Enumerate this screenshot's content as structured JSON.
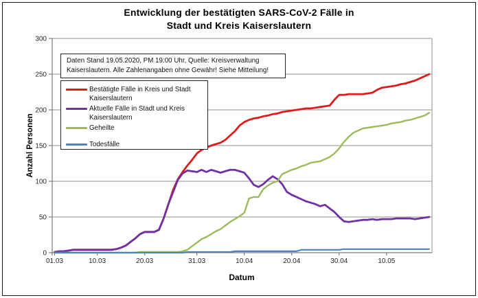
{
  "figure": {
    "title_lines": [
      "Entwicklung der bestätigten SARS-CoV-2 Fälle in",
      "Stadt und Kreis Kaiserslautern"
    ],
    "annotation_lines": [
      "Daten Stand 19.05.2020, PM 19:00 Uhr, Quelle: Kreisverwaltung",
      "Kaiserslautern. Alle Zahlenangaben ohne Gewähr! Siehe Mitteilung!"
    ]
  },
  "chart_data": {
    "type": "line",
    "title": "Entwicklung der bestätigten SARS-CoV-2 Fälle in Stadt und Kreis Kaiserslautern",
    "annotation": "Daten Stand 19.05.2020, PM 19:00 Uhr, Quelle: Kreisverwaltung Kaiserslautern. Alle Zahlenangaben ohne Gewähr! Siehe Mitteilung!",
    "xlabel": "Datum",
    "ylabel": "Anzahl Personen",
    "ylim": [
      0,
      300
    ],
    "yticks": [
      0,
      50,
      100,
      150,
      200,
      250,
      300
    ],
    "grid": "horizontal",
    "legend_position": "upper-left",
    "x_start": "01.03",
    "x_end": "19.05",
    "n_points": 80,
    "x_tick_labels": [
      "01.03",
      "10.03",
      "20.03",
      "31.03",
      "10.04",
      "20.04",
      "30.04",
      "10.05"
    ],
    "x_tick_day_index": [
      0,
      9,
      19,
      30,
      40,
      50,
      60,
      70
    ],
    "axis_color": "#7a7a7a",
    "gridline_color": "#8f8f8f",
    "tick_label_color": "#262626",
    "series": [
      {
        "key": "bestaetigte-faelle",
        "name": "Bestätigte Fälle in Kreis und Stadt Kaiserslautern",
        "color": "#e01a1a",
        "values": [
          1,
          2,
          2,
          3,
          4,
          4,
          4,
          4,
          4,
          4,
          4,
          4,
          4,
          5,
          7,
          10,
          15,
          20,
          26,
          29,
          29,
          29,
          32,
          48,
          68,
          88,
          103,
          113,
          122,
          130,
          139,
          144,
          147,
          150,
          152,
          154,
          158,
          164,
          170,
          178,
          183,
          186,
          188,
          189,
          191,
          192,
          194,
          195,
          197,
          198,
          199,
          200,
          201,
          202,
          202,
          203,
          204,
          205,
          206,
          214,
          221,
          221,
          222,
          222,
          222,
          222,
          223,
          224,
          228,
          231,
          232,
          233,
          234,
          236,
          237,
          239,
          241,
          244,
          247,
          250
        ]
      },
      {
        "key": "aktuelle-faelle",
        "name": "Aktuelle Fälle in Stadt und Kreis Kaiserslautern",
        "color": "#7030a0",
        "values": [
          1,
          2,
          2,
          3,
          4,
          4,
          4,
          4,
          4,
          4,
          4,
          4,
          4,
          5,
          7,
          10,
          15,
          20,
          26,
          29,
          29,
          29,
          32,
          48,
          68,
          85,
          102,
          111,
          115,
          114,
          113,
          116,
          113,
          116,
          114,
          112,
          114,
          116,
          116,
          114,
          112,
          104,
          95,
          92,
          96,
          102,
          107,
          103,
          96,
          85,
          81,
          78,
          75,
          72,
          70,
          68,
          65,
          67,
          62,
          57,
          50,
          44,
          43,
          44,
          45,
          46,
          46,
          47,
          46,
          47,
          47,
          47,
          48,
          48,
          48,
          48,
          47,
          48,
          49,
          50
        ]
      },
      {
        "key": "geheilte",
        "name": "Geheilte",
        "color": "#9bbb59",
        "values": [
          0,
          0,
          0,
          0,
          0,
          0,
          0,
          0,
          0,
          0,
          0,
          0,
          0,
          0,
          0,
          0,
          0,
          0,
          1,
          1,
          1,
          1,
          1,
          1,
          1,
          1,
          1,
          2,
          4,
          9,
          14,
          19,
          22,
          26,
          30,
          33,
          38,
          43,
          47,
          51,
          56,
          76,
          78,
          78,
          89,
          94,
          98,
          100,
          110,
          113,
          116,
          118,
          121,
          123,
          126,
          127,
          128,
          131,
          134,
          139,
          146,
          155,
          162,
          168,
          171,
          174,
          175,
          176,
          177,
          178,
          179,
          181,
          182,
          183,
          185,
          186,
          188,
          190,
          192,
          196
        ]
      },
      {
        "key": "todesfaelle",
        "name": "Todesfälle",
        "color": "#4f81bd",
        "values": [
          0,
          0,
          0,
          0,
          0,
          0,
          0,
          0,
          0,
          0,
          0,
          0,
          0,
          0,
          0,
          0,
          0,
          0,
          0,
          0,
          0,
          0,
          0,
          0,
          0,
          0,
          0,
          0,
          1,
          1,
          1,
          1,
          1,
          1,
          1,
          1,
          1,
          1,
          2,
          2,
          2,
          2,
          2,
          2,
          2,
          2,
          2,
          2,
          2,
          2,
          2,
          2,
          4,
          4,
          4,
          4,
          4,
          4,
          4,
          4,
          4,
          5,
          5,
          5,
          5,
          5,
          5,
          5,
          5,
          5,
          5,
          5,
          5,
          5,
          5,
          5,
          5,
          5,
          5,
          5
        ]
      }
    ]
  }
}
